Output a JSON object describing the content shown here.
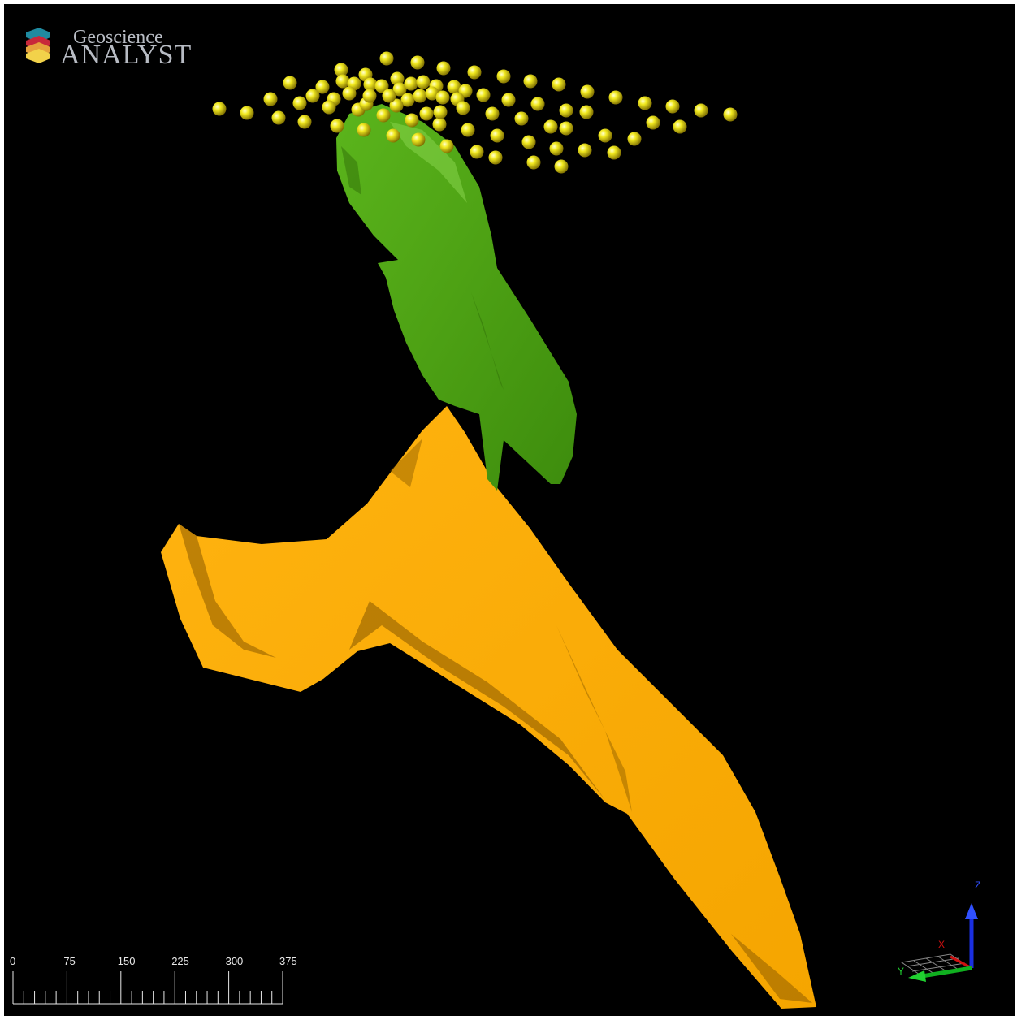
{
  "logo": {
    "line1": "Geoscience",
    "line2": "ANALYST"
  },
  "scale_bar": {
    "labels": [
      0,
      75,
      150,
      225,
      300,
      375
    ]
  },
  "axes": {
    "z": "Z",
    "x": "X",
    "y": "Y"
  }
}
